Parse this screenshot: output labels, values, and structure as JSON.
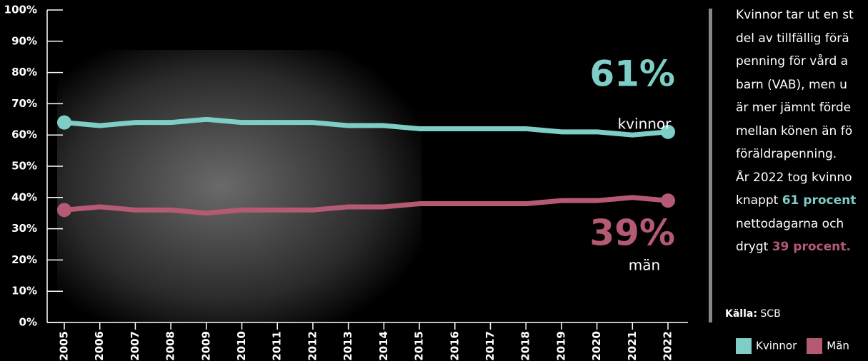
{
  "chart_data": {
    "type": "line",
    "categories": [
      "2005",
      "2006",
      "2007",
      "2008",
      "2009",
      "2010",
      "2011",
      "2012",
      "2013",
      "2014",
      "2015",
      "2016",
      "2017",
      "2018",
      "2019",
      "2020",
      "2021",
      "2022"
    ],
    "series": [
      {
        "name": "Kvinnor",
        "color": "#7ecdc6",
        "values": [
          64,
          63,
          64,
          64,
          65,
          64,
          64,
          64,
          63,
          63,
          62,
          62,
          62,
          62,
          61,
          61,
          60,
          61
        ]
      },
      {
        "name": "Män",
        "color": "#b45a73",
        "values": [
          36,
          37,
          36,
          36,
          35,
          36,
          36,
          36,
          37,
          37,
          38,
          38,
          38,
          38,
          39,
          39,
          40,
          39
        ]
      }
    ],
    "ylim": [
      0,
      100
    ],
    "yticks": [
      {
        "value": 0,
        "label": "0%"
      },
      {
        "value": 10,
        "label": "10%"
      },
      {
        "value": 20,
        "label": "20%"
      },
      {
        "value": 30,
        "label": "30%"
      },
      {
        "value": 40,
        "label": "40%"
      },
      {
        "value": 50,
        "label": "50%"
      },
      {
        "value": 60,
        "label": "60%"
      },
      {
        "value": 70,
        "label": "70%"
      },
      {
        "value": 80,
        "label": "80%"
      },
      {
        "value": 90,
        "label": "90%"
      },
      {
        "value": 100,
        "label": "100%"
      }
    ],
    "annotations": [
      {
        "value_label": "61%",
        "text": "kvinnor"
      },
      {
        "value_label": "39%",
        "text": "män"
      }
    ]
  },
  "sidebar": {
    "lines": [
      [
        {
          "text": "Kvinnor tar ut en st"
        }
      ],
      [
        {
          "text": "del av tillfällig förä"
        }
      ],
      [
        {
          "text": "penning för vård a"
        }
      ],
      [
        {
          "text": "barn (VAB), men u"
        }
      ],
      [
        {
          "text": "är mer jämnt förde"
        }
      ],
      [
        {
          "text": "mellan könen än fö"
        }
      ],
      [
        {
          "text": "föräldrapenning."
        }
      ],
      [
        {
          "text": "År 2022 tog kvinno"
        }
      ],
      [
        {
          "text": "knappt "
        },
        {
          "text": "61 procent",
          "bold": true,
          "color": "#7ecdc6"
        }
      ],
      [
        {
          "text": "nettodagarna och"
        }
      ],
      [
        {
          "text": "drygt "
        },
        {
          "text": "39 procent.",
          "bold": true,
          "color": "#b45a73"
        }
      ]
    ],
    "source_label": "Källa:",
    "source": "SCB"
  }
}
